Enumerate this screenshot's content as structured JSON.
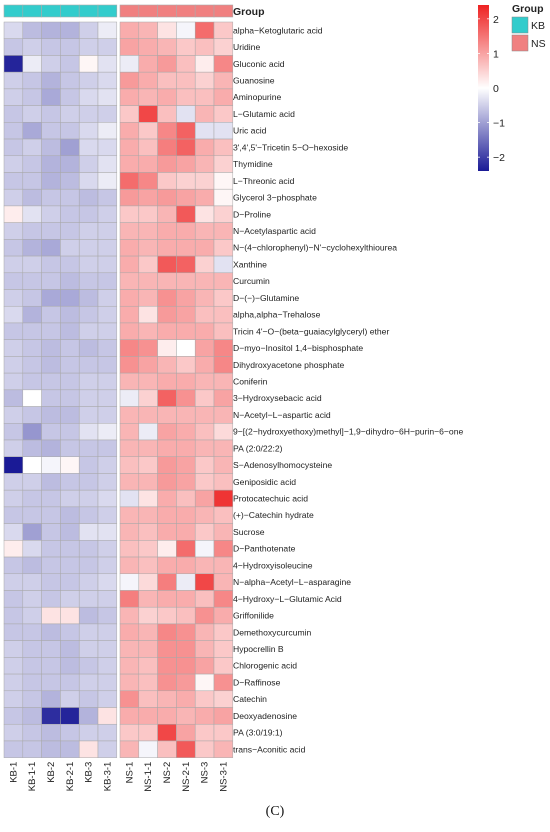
{
  "chart_data": {
    "type": "heatmap",
    "columns": [
      "KB-1",
      "KB-1-1",
      "KB-2",
      "KB-2-1",
      "KB-3",
      "KB-3-1",
      "NS-1",
      "NS-1-1",
      "NS-2",
      "NS-2-1",
      "NS-3",
      "NS-3-1"
    ],
    "column_groups": [
      "KB",
      "KB",
      "KB",
      "KB",
      "KB",
      "KB",
      "NS",
      "NS",
      "NS",
      "NS",
      "NS",
      "NS"
    ],
    "annotation_title": "Group",
    "rows": [
      "alpha−Ketoglutaric acid",
      "Uridine",
      "Gluconic acid",
      "Guanosine",
      "Aminopurine",
      "L−Glutamic acid",
      "Uric acid",
      "3',4',5'−Tricetin 5−O−hexoside",
      "Thymidine",
      "L−Threonic acid",
      "Glycerol 3−phosphate",
      "D−Proline",
      "N−Acetylaspartic acid",
      "N−(4−chlorophenyl)−N'−cyclohexylthiourea",
      "Xanthine",
      "Curcumin",
      "D−(−)−Glutamine",
      "alpha,alpha−Trehalose",
      "Tricin 4'−O−(beta−guaiacylglyceryl) ether",
      "D−myo−Inositol 1,4−bisphosphate",
      "Dihydroxyacetone phosphate",
      "Coniferin",
      "3−Hydroxysebacic acid",
      "N−Acetyl−L−aspartic acid",
      "9−[(2−hydroxyethoxy)methyl]−1,9−dihydro−6H−purin−6−one",
      "PA (2:0/22:2)",
      "S−Adenosylhomocysteine",
      "Geniposidic acid",
      "Protocatechuic acid",
      "(+)−Catechin hydrate",
      "Sucrose",
      "D−Panthotenate",
      "4−Hydroxyisoleucine",
      "N−alpha−Acetyl−L−asparagine",
      "4−Hydroxy−L−Glutamic Acid",
      "Griffonilide",
      "Demethoxycurcumin",
      "Hypocrellin B",
      "Chlorogenic acid",
      "D−Raffinose",
      "Catechin",
      "Deoxyadenosine",
      "PA (3:0/19:1)",
      "trans−Aconitic acid"
    ],
    "values": [
      [
        -0.4,
        -0.7,
        -0.8,
        -0.8,
        -0.5,
        -0.2,
        0.9,
        0.8,
        0.3,
        -0.1,
        1.6,
        0.6
      ],
      [
        -0.6,
        -0.5,
        -0.6,
        -0.6,
        -0.5,
        -0.5,
        1.0,
        0.9,
        0.8,
        0.6,
        0.7,
        0.5
      ],
      [
        -2.3,
        -0.2,
        -0.5,
        -0.6,
        0.1,
        -0.3,
        -0.2,
        0.9,
        1.1,
        0.7,
        0.2,
        1.3
      ],
      [
        -0.5,
        -0.6,
        -0.8,
        -0.6,
        -0.5,
        -0.4,
        1.1,
        0.9,
        0.7,
        0.7,
        0.5,
        0.8
      ],
      [
        -0.5,
        -0.6,
        -0.9,
        -0.6,
        -0.4,
        -0.3,
        0.9,
        0.8,
        0.9,
        0.7,
        0.7,
        0.9
      ],
      [
        -0.6,
        -0.5,
        -0.6,
        -0.5,
        -0.5,
        -0.5,
        0.6,
        2.0,
        0.7,
        -0.3,
        0.8,
        0.6
      ],
      [
        -0.6,
        -0.9,
        -0.6,
        -0.6,
        -0.4,
        -0.2,
        0.9,
        0.6,
        1.3,
        1.7,
        -0.3,
        -0.3
      ],
      [
        -0.6,
        -0.5,
        -0.7,
        -1.0,
        -0.4,
        -0.4,
        0.9,
        0.7,
        1.4,
        1.7,
        0.9,
        0.7
      ],
      [
        -0.5,
        -0.6,
        -0.8,
        -0.8,
        -0.5,
        -0.3,
        0.9,
        0.9,
        1.1,
        1.0,
        0.8,
        0.5
      ],
      [
        -0.6,
        -0.6,
        -0.8,
        -0.7,
        -0.4,
        -0.2,
        1.6,
        1.3,
        0.6,
        0.5,
        0.5,
        0.1
      ],
      [
        -0.5,
        -0.7,
        -0.6,
        -0.6,
        -0.7,
        -0.6,
        1.1,
        1.0,
        1.1,
        1.0,
        0.9,
        0.1
      ],
      [
        0.2,
        -0.3,
        -0.5,
        -0.6,
        -0.6,
        -0.5,
        0.6,
        0.6,
        0.8,
        1.8,
        0.3,
        0.5
      ],
      [
        -0.5,
        -0.6,
        -0.6,
        -0.6,
        -0.5,
        -0.5,
        0.8,
        0.8,
        0.9,
        0.9,
        0.8,
        0.8
      ],
      [
        -0.6,
        -0.8,
        -0.9,
        -0.5,
        -0.5,
        -0.5,
        0.9,
        0.8,
        0.9,
        0.9,
        0.9,
        0.6
      ],
      [
        -0.5,
        -0.5,
        -0.6,
        -0.6,
        -0.5,
        -0.5,
        0.9,
        0.6,
        1.8,
        1.7,
        0.5,
        -0.3
      ],
      [
        -0.6,
        -0.6,
        -0.6,
        -0.7,
        -0.6,
        -0.6,
        0.8,
        0.8,
        0.8,
        0.8,
        0.8,
        0.8
      ],
      [
        -0.5,
        -0.6,
        -0.9,
        -0.9,
        -0.7,
        -0.5,
        0.9,
        0.8,
        1.2,
        1.0,
        0.8,
        0.6
      ],
      [
        -0.4,
        -0.8,
        -0.6,
        -0.7,
        -0.6,
        -0.5,
        0.9,
        0.3,
        1.1,
        1.0,
        0.7,
        0.7
      ],
      [
        -0.6,
        -0.6,
        -0.6,
        -0.7,
        -0.5,
        -0.5,
        0.9,
        0.8,
        0.9,
        0.9,
        0.9,
        0.7
      ],
      [
        -0.5,
        -0.6,
        -0.7,
        -0.6,
        -0.7,
        -0.6,
        1.3,
        1.2,
        0.2,
        0.0,
        1.0,
        1.3
      ],
      [
        -0.5,
        -0.6,
        -0.7,
        -0.6,
        -0.6,
        -0.6,
        1.2,
        1.0,
        0.8,
        0.6,
        0.9,
        1.3
      ],
      [
        -0.5,
        -0.6,
        -0.6,
        -0.6,
        -0.5,
        -0.5,
        0.8,
        0.8,
        0.9,
        0.9,
        0.8,
        0.8
      ],
      [
        -0.7,
        0.0,
        -0.6,
        -0.6,
        -0.5,
        -0.5,
        -0.2,
        0.5,
        1.7,
        1.2,
        0.6,
        1.0
      ],
      [
        -0.5,
        -0.6,
        -0.7,
        -0.7,
        -0.5,
        -0.5,
        0.8,
        0.8,
        0.8,
        0.8,
        0.8,
        0.8
      ],
      [
        -0.6,
        -1.1,
        -0.6,
        -0.6,
        -0.3,
        -0.2,
        0.8,
        -0.2,
        1.0,
        0.9,
        0.7,
        0.4
      ],
      [
        -0.5,
        -0.7,
        -0.8,
        -0.6,
        -0.6,
        -0.6,
        0.8,
        0.8,
        0.9,
        0.9,
        0.8,
        0.8
      ],
      [
        -2.4,
        0.0,
        -0.1,
        0.1,
        -0.6,
        -0.5,
        0.7,
        0.6,
        1.1,
        1.0,
        0.6,
        0.8
      ],
      [
        -0.5,
        -0.5,
        -0.7,
        -0.6,
        -0.6,
        -0.5,
        0.8,
        0.8,
        1.1,
        1.0,
        0.6,
        0.7
      ],
      [
        -0.5,
        -0.6,
        -0.6,
        -0.5,
        -0.5,
        -0.4,
        -0.3,
        0.3,
        0.9,
        0.7,
        1.0,
        2.2
      ],
      [
        -0.6,
        -0.6,
        -0.6,
        -0.7,
        -0.6,
        -0.5,
        0.8,
        0.8,
        0.9,
        0.9,
        0.8,
        0.7
      ],
      [
        -0.4,
        -1.0,
        -0.6,
        -0.7,
        -0.3,
        -0.3,
        0.8,
        0.7,
        0.9,
        0.9,
        0.6,
        0.8
      ],
      [
        0.2,
        -0.4,
        -0.6,
        -0.6,
        -0.6,
        -0.5,
        0.7,
        0.6,
        0.2,
        1.6,
        -0.1,
        1.3
      ],
      [
        -0.6,
        -0.7,
        -0.6,
        -0.6,
        -0.6,
        -0.5,
        0.8,
        0.7,
        0.9,
        0.9,
        0.8,
        0.8
      ],
      [
        -0.5,
        -0.5,
        -0.6,
        -0.6,
        -0.5,
        -0.4,
        -0.1,
        0.4,
        1.4,
        -0.2,
        2.0,
        0.8
      ],
      [
        -0.6,
        -0.5,
        -0.6,
        -0.5,
        -0.5,
        -0.5,
        1.4,
        0.8,
        0.9,
        0.9,
        0.7,
        1.3
      ],
      [
        -0.6,
        -0.5,
        0.3,
        0.3,
        -0.7,
        -0.6,
        0.8,
        0.5,
        0.6,
        0.7,
        1.2,
        0.9
      ],
      [
        -0.6,
        -0.6,
        -0.7,
        -0.6,
        -0.5,
        -0.5,
        0.9,
        0.8,
        1.3,
        1.2,
        0.8,
        0.6
      ],
      [
        -0.5,
        -0.6,
        -0.6,
        -0.7,
        -0.5,
        -0.5,
        0.8,
        0.8,
        1.2,
        1.2,
        0.8,
        0.6
      ],
      [
        -0.5,
        -0.6,
        -0.6,
        -0.7,
        -0.6,
        -0.5,
        0.8,
        0.7,
        1.2,
        1.2,
        1.0,
        0.6
      ],
      [
        -0.5,
        -0.6,
        -0.6,
        -0.6,
        -0.5,
        -0.5,
        0.8,
        0.7,
        1.2,
        1.1,
        0.1,
        1.2
      ],
      [
        -0.5,
        -0.6,
        -0.8,
        -0.5,
        -0.6,
        -0.5,
        1.2,
        0.7,
        0.8,
        0.9,
        0.6,
        0.5
      ],
      [
        -0.6,
        -0.7,
        -2.2,
        -2.3,
        -0.8,
        0.3,
        0.9,
        0.9,
        0.9,
        0.8,
        0.9,
        1.0
      ],
      [
        -0.5,
        -0.6,
        -0.7,
        -0.6,
        -0.5,
        -0.5,
        0.6,
        0.6,
        2.0,
        1.0,
        0.6,
        0.6
      ],
      [
        -0.6,
        -0.6,
        -0.7,
        -0.7,
        0.3,
        -0.5,
        0.8,
        -0.1,
        0.7,
        1.8,
        0.6,
        0.8
      ]
    ],
    "scale_range": [
      -2.4,
      2.4
    ],
    "scale_colors": {
      "low": "#1a1a96",
      "mid": "#ffffff",
      "high": "#ee2222"
    },
    "legend": {
      "title": "Group",
      "items": [
        {
          "label": "KB",
          "color": "#33cccc"
        },
        {
          "label": "NS",
          "color": "#f08080"
        }
      ]
    },
    "colorbar_ticks": [
      "2",
      "1",
      "0",
      "−1",
      "−2"
    ],
    "colorbar_tick_values": [
      2,
      1,
      0,
      -1,
      -2
    ],
    "caption": "(C)"
  }
}
